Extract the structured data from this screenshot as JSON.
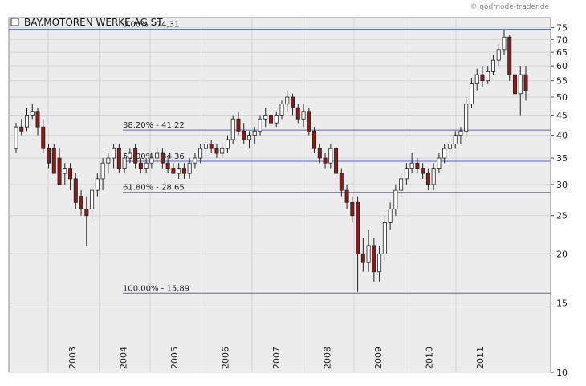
{
  "chart_data": {
    "type": "candlestick",
    "title": "BAY.MOTOREN WERKE AG ST",
    "credit": "© godmode-trader.de",
    "scale": "log",
    "ylim": [
      10,
      77
    ],
    "y_ticks": [
      10,
      15,
      20,
      25,
      30,
      35,
      40,
      45,
      50,
      55,
      60,
      65,
      70,
      75
    ],
    "x_ticks": [
      "2003",
      "2004",
      "2005",
      "2006",
      "2007",
      "2008",
      "2009",
      "2010",
      "2011"
    ],
    "grid": true,
    "colors": {
      "up": "#ffffff",
      "down": "#8b1a1a",
      "fib_line": "#5566bb",
      "plot_bg": "#ececec",
      "grid": "#d4d4d4"
    },
    "fib_levels": [
      {
        "label": "0.00% - 74,31",
        "value": 74.31
      },
      {
        "label": "38.20% - 41,22",
        "value": 41.22
      },
      {
        "label": "50.00% - 34,36",
        "value": 34.36
      },
      {
        "label": "61.80% - 28,65",
        "value": 28.65
      },
      {
        "label": "100.00% - 15,89",
        "value": 15.89
      }
    ],
    "candles_ohlc": [
      [
        37,
        43,
        36,
        42
      ],
      [
        42,
        44,
        40,
        41
      ],
      [
        42,
        47,
        41,
        45
      ],
      [
        45,
        48,
        44,
        46
      ],
      [
        46,
        47,
        40,
        42
      ],
      [
        42,
        44,
        36,
        37
      ],
      [
        37,
        38,
        33,
        34
      ],
      [
        37,
        38,
        32,
        32
      ],
      [
        35,
        37,
        30,
        30
      ],
      [
        32,
        34,
        30,
        33
      ],
      [
        33,
        34,
        29,
        31
      ],
      [
        31,
        32,
        26,
        27
      ],
      [
        28,
        29,
        25,
        26
      ],
      [
        26,
        28,
        21,
        25
      ],
      [
        26,
        30,
        24,
        29
      ],
      [
        29,
        32,
        28,
        31
      ],
      [
        31,
        35,
        29,
        34
      ],
      [
        34,
        36,
        32,
        35
      ],
      [
        35,
        38,
        33,
        37
      ],
      [
        37,
        38,
        32,
        33
      ],
      [
        33,
        36,
        32,
        35
      ],
      [
        35,
        37,
        34,
        36
      ],
      [
        37,
        38,
        33,
        34
      ],
      [
        34,
        35,
        32,
        33
      ],
      [
        33,
        35,
        32,
        34
      ],
      [
        34,
        36,
        33,
        35
      ],
      [
        35,
        37,
        34,
        36
      ],
      [
        36,
        37,
        33,
        34
      ],
      [
        34,
        35,
        32,
        33
      ],
      [
        33,
        34,
        32,
        32
      ],
      [
        32,
        34,
        31,
        33
      ],
      [
        33,
        34,
        31,
        32
      ],
      [
        32,
        35,
        31,
        34
      ],
      [
        34,
        36,
        33,
        35
      ],
      [
        35,
        38,
        34,
        37
      ],
      [
        37,
        39,
        35,
        38
      ],
      [
        38,
        39,
        36,
        37
      ],
      [
        37,
        38,
        35,
        36
      ],
      [
        36,
        38,
        35,
        37
      ],
      [
        37,
        40,
        36,
        39
      ],
      [
        39,
        45,
        38,
        44
      ],
      [
        44,
        46,
        40,
        41
      ],
      [
        41,
        43,
        38,
        39
      ],
      [
        39,
        41,
        37,
        40
      ],
      [
        40,
        42,
        38,
        41
      ],
      [
        41,
        45,
        40,
        44
      ],
      [
        44,
        47,
        42,
        45
      ],
      [
        45,
        47,
        42,
        43
      ],
      [
        43,
        46,
        42,
        45
      ],
      [
        45,
        49,
        44,
        48
      ],
      [
        48,
        52,
        46,
        50
      ],
      [
        50,
        51,
        45,
        47
      ],
      [
        47,
        48,
        43,
        44
      ],
      [
        44,
        48,
        42,
        46
      ],
      [
        46,
        47,
        40,
        41
      ],
      [
        41,
        42,
        36,
        37
      ],
      [
        37,
        38,
        34,
        35
      ],
      [
        35,
        36,
        33,
        34
      ],
      [
        34,
        38,
        33,
        37
      ],
      [
        37,
        38,
        31,
        32
      ],
      [
        32,
        33,
        28,
        29
      ],
      [
        29,
        30,
        26,
        27
      ],
      [
        27,
        28,
        24,
        25
      ],
      [
        27,
        28,
        16,
        20
      ],
      [
        20,
        22,
        18,
        19
      ],
      [
        19,
        23,
        18,
        21
      ],
      [
        21,
        22,
        17,
        18
      ],
      [
        18,
        21,
        17,
        20
      ],
      [
        20,
        25,
        19,
        24
      ],
      [
        24,
        27,
        23,
        26
      ],
      [
        26,
        30,
        25,
        29
      ],
      [
        29,
        32,
        28,
        31
      ],
      [
        31,
        34,
        30,
        33
      ],
      [
        33,
        36,
        32,
        34
      ],
      [
        34,
        35,
        32,
        33
      ],
      [
        33,
        34,
        31,
        32
      ],
      [
        32,
        33,
        29,
        30
      ],
      [
        30,
        34,
        29,
        33
      ],
      [
        33,
        36,
        32,
        35
      ],
      [
        35,
        38,
        34,
        37
      ],
      [
        37,
        39,
        36,
        38
      ],
      [
        38,
        41,
        37,
        40
      ],
      [
        40,
        42,
        38,
        41
      ],
      [
        41,
        50,
        40,
        48
      ],
      [
        48,
        56,
        47,
        54
      ],
      [
        54,
        59,
        52,
        57
      ],
      [
        57,
        60,
        53,
        55
      ],
      [
        55,
        60,
        54,
        58
      ],
      [
        58,
        64,
        57,
        62
      ],
      [
        62,
        68,
        60,
        66
      ],
      [
        66,
        74,
        64,
        71
      ],
      [
        71,
        72,
        55,
        57
      ],
      [
        57,
        60,
        48,
        51
      ],
      [
        51,
        60,
        45,
        57
      ],
      [
        57,
        60,
        49,
        52
      ]
    ]
  }
}
